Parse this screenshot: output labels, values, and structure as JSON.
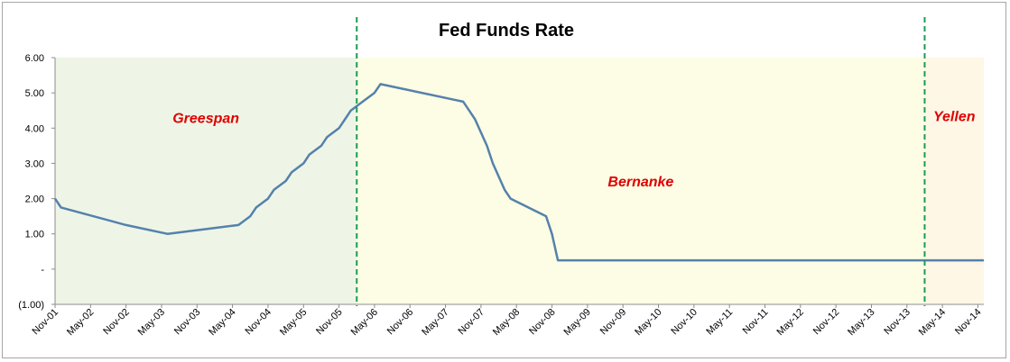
{
  "chart_data": {
    "type": "line",
    "title": "Fed Funds Rate",
    "x_tick_labels": [
      "Nov-01",
      "May-02",
      "Nov-02",
      "May-03",
      "Nov-03",
      "May-04",
      "Nov-04",
      "May-05",
      "Nov-05",
      "May-06",
      "Nov-06",
      "May-07",
      "Nov-07",
      "May-08",
      "Nov-08",
      "May-09",
      "Nov-09",
      "May-10",
      "Nov-10",
      "May-11",
      "Nov-11",
      "May-12",
      "Nov-12",
      "May-13",
      "Nov-13",
      "May-14",
      "Nov-14"
    ],
    "y_ticks": [
      {
        "value": 6,
        "label": "6.00"
      },
      {
        "value": 5,
        "label": "5.00"
      },
      {
        "value": 4,
        "label": "4.00"
      },
      {
        "value": 3,
        "label": "3.00"
      },
      {
        "value": 2,
        "label": "2.00"
      },
      {
        "value": 1,
        "label": "1.00"
      },
      {
        "value": 0,
        "label": "-"
      },
      {
        "value": -1,
        "label": "(1.00)"
      }
    ],
    "ylim": [
      -1,
      6
    ],
    "xlim": [
      "2001-11",
      "2014-12"
    ],
    "series": [
      {
        "color": "#5581ad",
        "points": [
          [
            "2001-11",
            2.0
          ],
          [
            "2001-12",
            1.75
          ],
          [
            "2002-11",
            1.25
          ],
          [
            "2003-06",
            1.0
          ],
          [
            "2004-06",
            1.25
          ],
          [
            "2004-08",
            1.5
          ],
          [
            "2004-09",
            1.75
          ],
          [
            "2004-11",
            2.0
          ],
          [
            "2004-12",
            2.25
          ],
          [
            "2005-02",
            2.5
          ],
          [
            "2005-03",
            2.75
          ],
          [
            "2005-05",
            3.0
          ],
          [
            "2005-06",
            3.25
          ],
          [
            "2005-08",
            3.5
          ],
          [
            "2005-09",
            3.75
          ],
          [
            "2005-11",
            4.0
          ],
          [
            "2005-12",
            4.25
          ],
          [
            "2006-01",
            4.5
          ],
          [
            "2006-03",
            4.75
          ],
          [
            "2006-05",
            5.0
          ],
          [
            "2006-06",
            5.25
          ],
          [
            "2007-08",
            4.75
          ],
          [
            "2007-09",
            4.5
          ],
          [
            "2007-10",
            4.25
          ],
          [
            "2007-12",
            3.5
          ],
          [
            "2008-01",
            3.0
          ],
          [
            "2008-03",
            2.25
          ],
          [
            "2008-04",
            2.0
          ],
          [
            "2008-10",
            1.5
          ],
          [
            "2008-11",
            1.0
          ],
          [
            "2008-12",
            0.25
          ],
          [
            "2014-12",
            0.25
          ]
        ]
      }
    ],
    "eras": [
      {
        "name": "Greespan",
        "start": "2001-11",
        "end": "2006-02",
        "fill": "#eef5e6"
      },
      {
        "name": "Bernanke",
        "start": "2006-02",
        "end": "2014-02",
        "fill": "#fcfde4"
      },
      {
        "name": "Yellen",
        "start": "2014-02",
        "end": "2014-12",
        "fill": "#fef7e6"
      }
    ],
    "era_label_color": "#e00000",
    "transition_line_color": "#1a9d55",
    "grid": false,
    "legend": "none"
  }
}
